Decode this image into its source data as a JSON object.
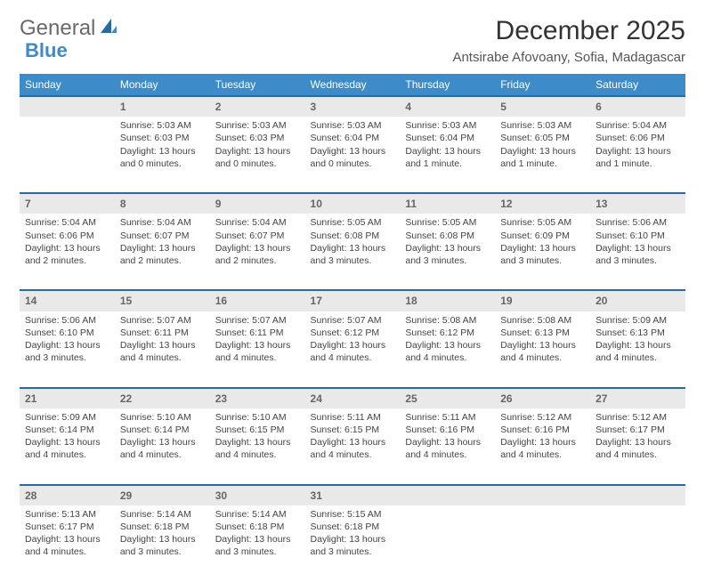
{
  "brand": {
    "part1": "General",
    "part2": "Blue"
  },
  "title": "December 2025",
  "location": "Antsirabe Afovoany, Sofia, Madagascar",
  "colors": {
    "header_bg": "#3d8bc9",
    "row_divider": "#2a6aa0",
    "daynum_bg": "#e9e9e9",
    "text": "#444444",
    "background": "#ffffff"
  },
  "weekdays": [
    "Sunday",
    "Monday",
    "Tuesday",
    "Wednesday",
    "Thursday",
    "Friday",
    "Saturday"
  ],
  "weeks": [
    [
      null,
      {
        "n": "1",
        "sr": "5:03 AM",
        "ss": "6:03 PM",
        "dl": "13 hours and 0 minutes."
      },
      {
        "n": "2",
        "sr": "5:03 AM",
        "ss": "6:03 PM",
        "dl": "13 hours and 0 minutes."
      },
      {
        "n": "3",
        "sr": "5:03 AM",
        "ss": "6:04 PM",
        "dl": "13 hours and 0 minutes."
      },
      {
        "n": "4",
        "sr": "5:03 AM",
        "ss": "6:04 PM",
        "dl": "13 hours and 1 minute."
      },
      {
        "n": "5",
        "sr": "5:03 AM",
        "ss": "6:05 PM",
        "dl": "13 hours and 1 minute."
      },
      {
        "n": "6",
        "sr": "5:04 AM",
        "ss": "6:06 PM",
        "dl": "13 hours and 1 minute."
      }
    ],
    [
      {
        "n": "7",
        "sr": "5:04 AM",
        "ss": "6:06 PM",
        "dl": "13 hours and 2 minutes."
      },
      {
        "n": "8",
        "sr": "5:04 AM",
        "ss": "6:07 PM",
        "dl": "13 hours and 2 minutes."
      },
      {
        "n": "9",
        "sr": "5:04 AM",
        "ss": "6:07 PM",
        "dl": "13 hours and 2 minutes."
      },
      {
        "n": "10",
        "sr": "5:05 AM",
        "ss": "6:08 PM",
        "dl": "13 hours and 3 minutes."
      },
      {
        "n": "11",
        "sr": "5:05 AM",
        "ss": "6:08 PM",
        "dl": "13 hours and 3 minutes."
      },
      {
        "n": "12",
        "sr": "5:05 AM",
        "ss": "6:09 PM",
        "dl": "13 hours and 3 minutes."
      },
      {
        "n": "13",
        "sr": "5:06 AM",
        "ss": "6:10 PM",
        "dl": "13 hours and 3 minutes."
      }
    ],
    [
      {
        "n": "14",
        "sr": "5:06 AM",
        "ss": "6:10 PM",
        "dl": "13 hours and 3 minutes."
      },
      {
        "n": "15",
        "sr": "5:07 AM",
        "ss": "6:11 PM",
        "dl": "13 hours and 4 minutes."
      },
      {
        "n": "16",
        "sr": "5:07 AM",
        "ss": "6:11 PM",
        "dl": "13 hours and 4 minutes."
      },
      {
        "n": "17",
        "sr": "5:07 AM",
        "ss": "6:12 PM",
        "dl": "13 hours and 4 minutes."
      },
      {
        "n": "18",
        "sr": "5:08 AM",
        "ss": "6:12 PM",
        "dl": "13 hours and 4 minutes."
      },
      {
        "n": "19",
        "sr": "5:08 AM",
        "ss": "6:13 PM",
        "dl": "13 hours and 4 minutes."
      },
      {
        "n": "20",
        "sr": "5:09 AM",
        "ss": "6:13 PM",
        "dl": "13 hours and 4 minutes."
      }
    ],
    [
      {
        "n": "21",
        "sr": "5:09 AM",
        "ss": "6:14 PM",
        "dl": "13 hours and 4 minutes."
      },
      {
        "n": "22",
        "sr": "5:10 AM",
        "ss": "6:14 PM",
        "dl": "13 hours and 4 minutes."
      },
      {
        "n": "23",
        "sr": "5:10 AM",
        "ss": "6:15 PM",
        "dl": "13 hours and 4 minutes."
      },
      {
        "n": "24",
        "sr": "5:11 AM",
        "ss": "6:15 PM",
        "dl": "13 hours and 4 minutes."
      },
      {
        "n": "25",
        "sr": "5:11 AM",
        "ss": "6:16 PM",
        "dl": "13 hours and 4 minutes."
      },
      {
        "n": "26",
        "sr": "5:12 AM",
        "ss": "6:16 PM",
        "dl": "13 hours and 4 minutes."
      },
      {
        "n": "27",
        "sr": "5:12 AM",
        "ss": "6:17 PM",
        "dl": "13 hours and 4 minutes."
      }
    ],
    [
      {
        "n": "28",
        "sr": "5:13 AM",
        "ss": "6:17 PM",
        "dl": "13 hours and 4 minutes."
      },
      {
        "n": "29",
        "sr": "5:14 AM",
        "ss": "6:18 PM",
        "dl": "13 hours and 3 minutes."
      },
      {
        "n": "30",
        "sr": "5:14 AM",
        "ss": "6:18 PM",
        "dl": "13 hours and 3 minutes."
      },
      {
        "n": "31",
        "sr": "5:15 AM",
        "ss": "6:18 PM",
        "dl": "13 hours and 3 minutes."
      },
      null,
      null,
      null
    ]
  ],
  "labels": {
    "sunrise": "Sunrise:",
    "sunset": "Sunset:",
    "daylight": "Daylight:"
  }
}
